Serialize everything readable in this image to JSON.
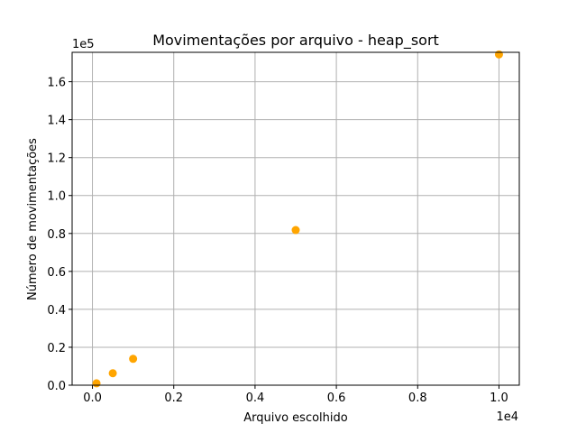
{
  "chart_data": {
    "type": "scatter",
    "title": "Movimentações por arquivo - heap_sort",
    "xlabel": "Arquivo escolhido",
    "ylabel": "Número de movimentações",
    "x_offset_label": "1e4",
    "y_offset_label": "1e5",
    "x_ticks": [
      "0.0",
      "0.2",
      "0.4",
      "0.6",
      "0.8",
      "1.0"
    ],
    "y_ticks": [
      "0.0",
      "0.2",
      "0.4",
      "0.6",
      "0.8",
      "1.0",
      "1.2",
      "1.4",
      "1.6"
    ],
    "xlim": [
      -500,
      10500
    ],
    "ylim": [
      0,
      175500
    ],
    "grid": true,
    "colors": {
      "marker": "#ffa500",
      "grid": "#b0b0b0"
    },
    "series": [
      {
        "x": [
          100,
          500,
          1000,
          5000,
          10000
        ],
        "y": [
          1000,
          6300,
          13900,
          81800,
          174400
        ]
      }
    ]
  }
}
